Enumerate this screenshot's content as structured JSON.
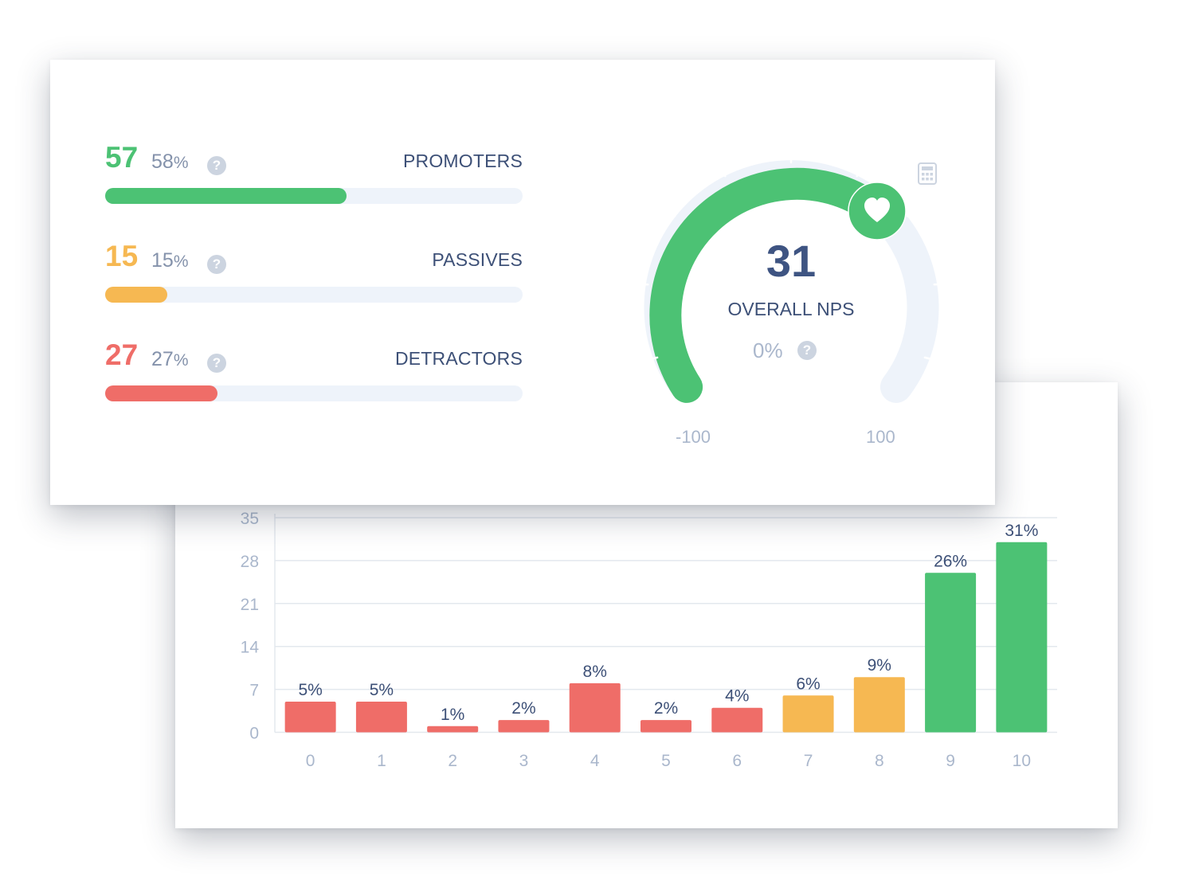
{
  "nps_summary": {
    "categories": [
      {
        "key": "promoters",
        "count": "57",
        "pct": "58",
        "pct_unit": "%",
        "label": "PROMOTERS",
        "fraction": 0.58,
        "color": "#4cc274"
      },
      {
        "key": "passives",
        "count": "15",
        "pct": "15",
        "pct_unit": "%",
        "label": "PASSIVES",
        "fraction": 0.15,
        "color": "#f6b852"
      },
      {
        "key": "detractors",
        "count": "27",
        "pct": "27",
        "pct_unit": "%",
        "label": "DETRACTORS",
        "fraction": 0.27,
        "color": "#ef6d68"
      }
    ],
    "help_glyph": "?",
    "gauge": {
      "value": "31",
      "value_number": 31,
      "label": "OVERALL NPS",
      "change": "0%",
      "min_label": "-100",
      "max_label": "100",
      "min": -100,
      "max": 100,
      "fill_color": "#4cc274",
      "track_color": "#eef3fa",
      "marker_icon": "heart-icon",
      "corner_icon": "calculator-icon"
    }
  },
  "chart_data": {
    "type": "bar",
    "categories": [
      "0",
      "1",
      "2",
      "3",
      "4",
      "5",
      "6",
      "7",
      "8",
      "9",
      "10"
    ],
    "values": [
      5,
      5,
      1,
      2,
      8,
      2,
      4,
      6,
      9,
      26,
      31
    ],
    "data_labels": [
      "5%",
      "5%",
      "1%",
      "2%",
      "8%",
      "2%",
      "4%",
      "6%",
      "9%",
      "26%",
      "31%"
    ],
    "bar_colors": [
      "#ef6d68",
      "#ef6d68",
      "#ef6d68",
      "#ef6d68",
      "#ef6d68",
      "#ef6d68",
      "#ef6d68",
      "#f6b852",
      "#f6b852",
      "#4cc274",
      "#4cc274"
    ],
    "y_ticks": [
      "0",
      "7",
      "14",
      "21",
      "28",
      "35"
    ],
    "ylim": [
      0,
      35
    ],
    "grid": true,
    "title": "",
    "xlabel": "",
    "ylabel": ""
  }
}
